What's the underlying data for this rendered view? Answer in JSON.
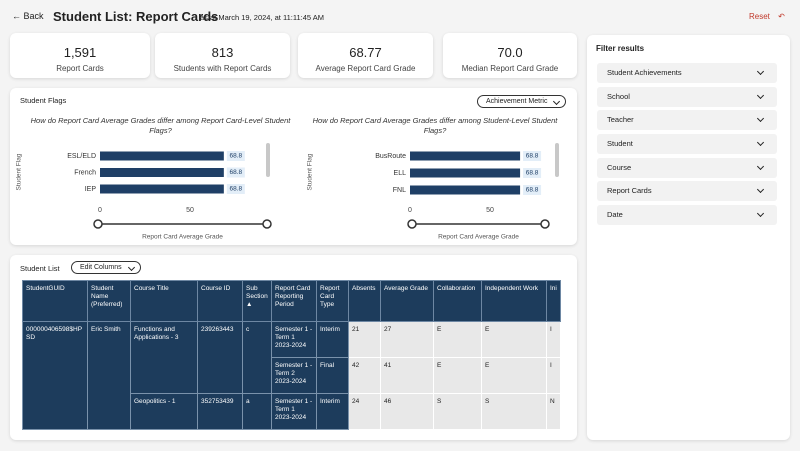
{
  "header": {
    "back": "Back",
    "title": "Student List: Report Cards",
    "subtitle": "as at March 19, 2024, at 11:11:45 AM",
    "reset": "Reset"
  },
  "kpis": [
    {
      "value": "1,591",
      "label": "Report Cards"
    },
    {
      "value": "813",
      "label": "Students with Report Cards"
    },
    {
      "value": "68.77",
      "label": "Average Report Card Grade"
    },
    {
      "value": "70.0",
      "label": "Median Report Card Grade"
    }
  ],
  "student_flags": {
    "title": "Student Flags",
    "button": "Achievement Metric"
  },
  "chart_data": [
    {
      "type": "bar",
      "orientation": "horizontal",
      "title": "How do Report Card Average Grades differ among Report Card-Level Student Flags?",
      "x_label": "Report Card Average Grade",
      "y_label": "Student Flag",
      "categories": [
        "ESL/ELD",
        "French",
        "IEP"
      ],
      "values": [
        68.8,
        68.8,
        68.8
      ],
      "color": "#1f3f66",
      "xlim": [
        0,
        90
      ],
      "xticks": [
        0,
        50
      ]
    },
    {
      "type": "bar",
      "orientation": "horizontal",
      "title": "How do Report Card Average Grades differ among Student-Level Student Flags?",
      "x_label": "Report Card Average Grade",
      "y_label": "Student Flag",
      "categories": [
        "BusRoute",
        "ELL",
        "FNL"
      ],
      "values": [
        68.8,
        68.8,
        68.8
      ],
      "color": "#1f3f66",
      "xlim": [
        0,
        90
      ],
      "xticks": [
        0,
        50
      ]
    }
  ],
  "filters": {
    "title": "Filter results",
    "items": [
      "Student Achievements",
      "School",
      "Teacher",
      "Student",
      "Course",
      "Report Cards",
      "Date"
    ]
  },
  "student_list": {
    "title": "Student List",
    "button": "Edit Columns",
    "table": {
      "columns": [
        "StudentGUID",
        "Student Name (Preferred)",
        "Course Title",
        "Course ID",
        "Sub Section",
        "Report Card Reporting Period",
        "Report Card Type",
        "Absents",
        "Average Grade",
        "Collaboration",
        "Independent Work",
        "Ini"
      ],
      "rows": [
        [
          "000000406598$HPSD",
          "Eric Smith",
          "Functions and Applications - 3",
          "239263443",
          "c",
          "Semester 1 - Term 1 2023-2024",
          "Interim",
          "21",
          "27",
          "E",
          "E",
          "I"
        ],
        [
          "Semester 1 - Term 2 2023-2024",
          "Final",
          "42",
          "41",
          "E",
          "E",
          "I"
        ],
        [
          "Geopolitics - 1",
          "352753439",
          "a",
          "Semester 1 - Term 1 2023-2024",
          "Interim",
          "24",
          "46",
          "S",
          "S",
          "N"
        ]
      ]
    }
  }
}
